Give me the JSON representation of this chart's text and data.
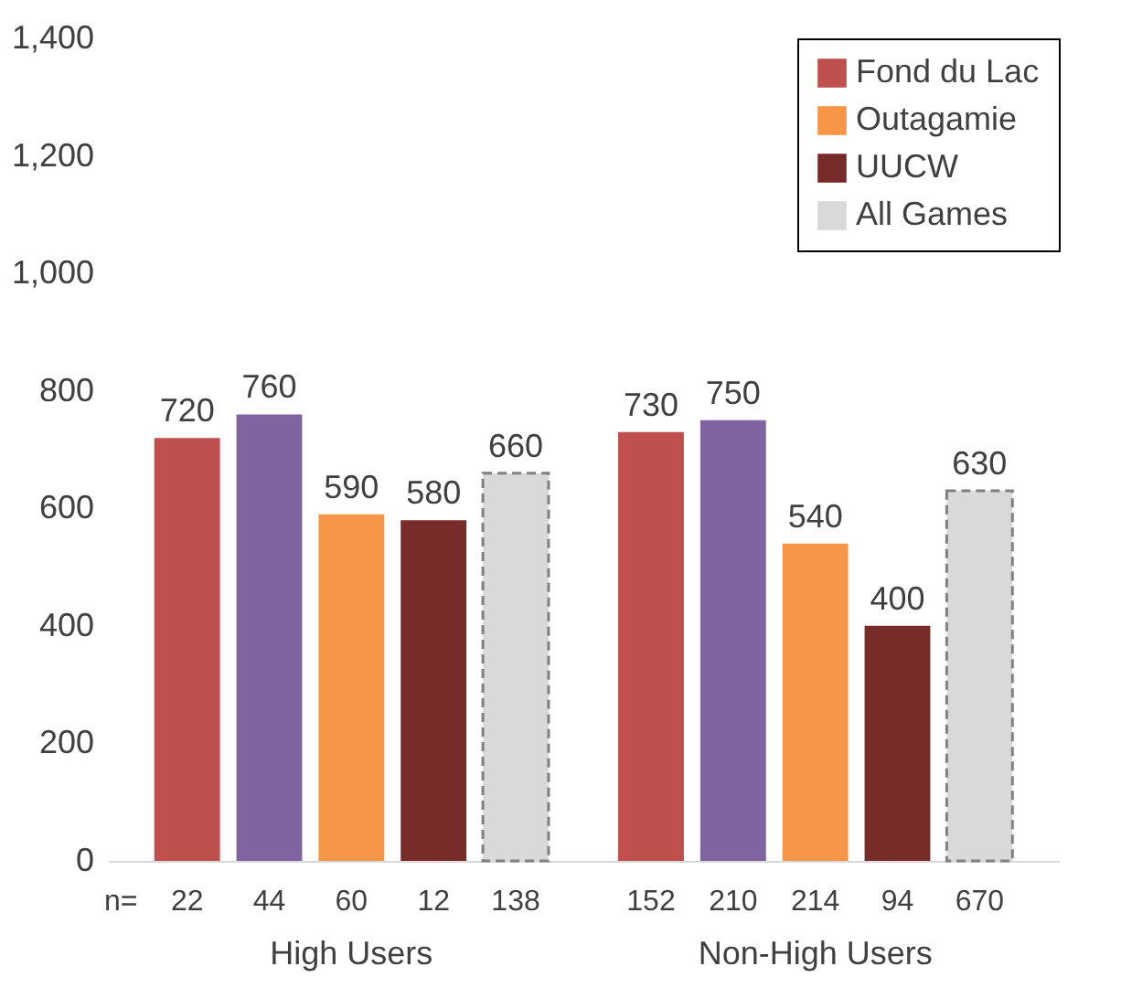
{
  "chart_data": {
    "type": "bar",
    "categories": [
      "High Users",
      "Non-High Users"
    ],
    "series": [
      {
        "name": "Fond du Lac",
        "color": "#c0504d",
        "values": [
          720,
          730
        ]
      },
      {
        "color": "#8064a2",
        "values": [
          760,
          750
        ]
      },
      {
        "name": "Outagamie",
        "color": "#f79646",
        "values": [
          590,
          540
        ]
      },
      {
        "name": "UUCW",
        "color": "#772c2a",
        "values": [
          580,
          400
        ]
      },
      {
        "name": "All Games",
        "color": "#d9d9d9",
        "line_style": "dashed",
        "values": [
          660,
          630
        ]
      }
    ],
    "ylim": [
      0,
      1400
    ],
    "yticks": [
      0,
      200,
      400,
      600,
      800,
      {
        "value": 1000,
        "label": "1,000"
      },
      {
        "value": 1200,
        "label": "1,200"
      },
      {
        "value": 1400,
        "label": "1,400"
      }
    ],
    "grid": false,
    "legend": "top right",
    "data_labels": true,
    "annotations": [
      "n=",
      "22",
      "44",
      "60",
      "12",
      "138",
      "152",
      "210",
      "214",
      "94",
      "670"
    ]
  }
}
